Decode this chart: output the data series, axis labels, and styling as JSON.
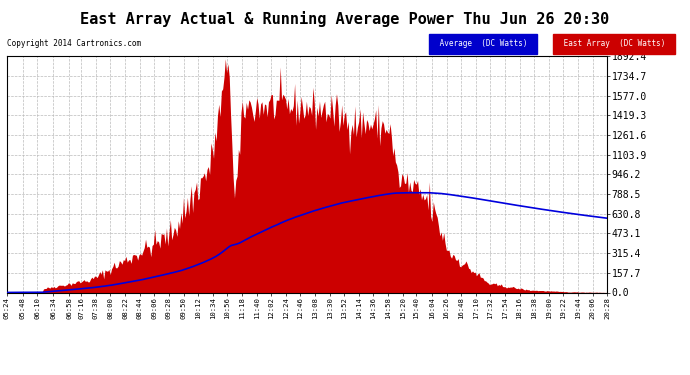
{
  "title": "East Array Actual & Running Average Power Thu Jun 26 20:30",
  "copyright": "Copyright 2014 Cartronics.com",
  "ylabel_right": [
    "1892.4",
    "1734.7",
    "1577.0",
    "1419.3",
    "1261.6",
    "1103.9",
    "946.2",
    "788.5",
    "630.8",
    "473.1",
    "315.4",
    "157.7",
    "0.0"
  ],
  "ymax": 1892.4,
  "ymin": 0.0,
  "background_color": "#ffffff",
  "plot_bg_color": "#ffffff",
  "grid_color": "#bbbbbb",
  "fill_color": "#cc0000",
  "line_color": "#0000dd",
  "title_fontsize": 11,
  "legend_avg_label": "Average  (DC Watts)",
  "legend_east_label": "East Array  (DC Watts)",
  "legend_avg_bg": "#0000cc",
  "legend_east_bg": "#cc0000",
  "tick_times_str": [
    "05:24",
    "05:48",
    "06:10",
    "06:34",
    "06:58",
    "07:16",
    "07:38",
    "08:00",
    "08:22",
    "08:44",
    "09:06",
    "09:28",
    "09:50",
    "10:12",
    "10:34",
    "10:56",
    "11:18",
    "11:40",
    "12:02",
    "12:24",
    "12:46",
    "13:08",
    "13:30",
    "13:52",
    "14:14",
    "14:36",
    "14:58",
    "15:20",
    "15:40",
    "16:04",
    "16:26",
    "16:48",
    "17:10",
    "17:32",
    "17:54",
    "18:16",
    "18:38",
    "19:00",
    "19:22",
    "19:44",
    "20:06",
    "20:28"
  ]
}
